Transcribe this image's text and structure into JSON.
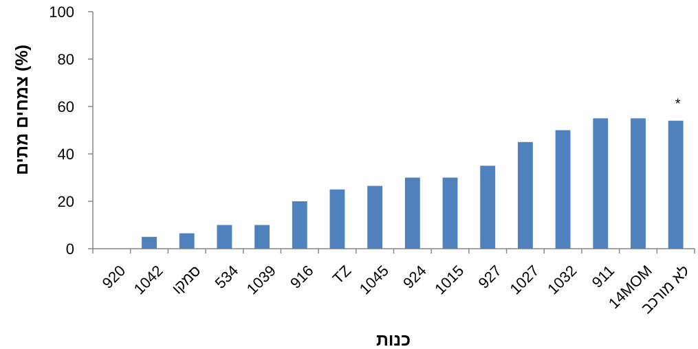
{
  "chart_data": {
    "type": "bar",
    "categories": [
      "920",
      "1042",
      "סמקו",
      "534",
      "1039",
      "916",
      "TZ",
      "1045",
      "924",
      "1015",
      "927",
      "1027",
      "1032",
      "911",
      "14MOM",
      "לא מורכב"
    ],
    "values": [
      0,
      5,
      6.5,
      10,
      10,
      20,
      25,
      26.5,
      30,
      30,
      35,
      45,
      50,
      55,
      55,
      54
    ],
    "xlabel": "כנות",
    "ylabel": "צמחים מתים (%)",
    "ylim": [
      0,
      100
    ],
    "yticks": [
      0,
      20,
      40,
      60,
      80,
      100
    ],
    "bar_color": "#4f81bd",
    "grid": false,
    "legend": "none",
    "annotations": [
      {
        "category": "לא מורכב",
        "text": "*"
      }
    ]
  }
}
